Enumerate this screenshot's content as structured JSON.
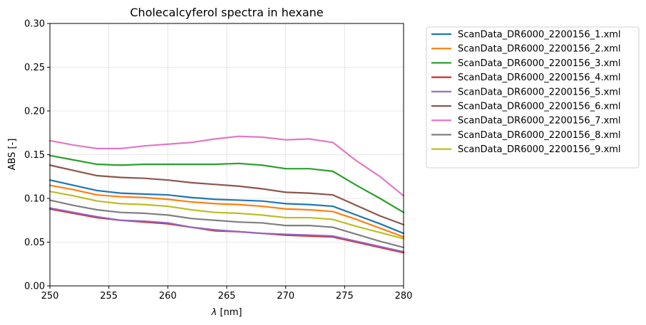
{
  "chart_data": {
    "type": "line",
    "title": "Cholecalcyferol spectra in hexane",
    "xlabel_symbol": "λ",
    "xlabel_unit": " [nm]",
    "ylabel": "ABS [-]",
    "xlim": [
      250,
      280
    ],
    "ylim": [
      0.0,
      0.3
    ],
    "xticks": [
      250,
      255,
      260,
      265,
      270,
      275,
      280
    ],
    "xtick_labels": [
      "250",
      "255",
      "260",
      "265",
      "270",
      "275",
      "280"
    ],
    "yticks": [
      0.0,
      0.05,
      0.1,
      0.15,
      0.2,
      0.25,
      0.3
    ],
    "ytick_labels": [
      "0.00",
      "0.05",
      "0.10",
      "0.15",
      "0.20",
      "0.25",
      "0.30"
    ],
    "grid": true,
    "legend_position": "outside-right-top",
    "x": [
      250,
      252,
      254,
      256,
      258,
      260,
      262,
      264,
      266,
      268,
      270,
      272,
      274,
      276,
      278,
      280
    ],
    "series": [
      {
        "name": "ScanData_DR6000_2200156_1.xml",
        "color": "#1f77b4",
        "values": [
          0.121,
          0.115,
          0.109,
          0.106,
          0.105,
          0.104,
          0.101,
          0.099,
          0.098,
          0.097,
          0.094,
          0.093,
          0.091,
          0.081,
          0.071,
          0.06
        ]
      },
      {
        "name": "ScanData_DR6000_2200156_2.xml",
        "color": "#ff7f0e",
        "values": [
          0.115,
          0.11,
          0.104,
          0.102,
          0.101,
          0.099,
          0.096,
          0.094,
          0.093,
          0.091,
          0.088,
          0.087,
          0.085,
          0.076,
          0.066,
          0.056
        ]
      },
      {
        "name": "ScanData_DR6000_2200156_3.xml",
        "color": "#2ca02c",
        "values": [
          0.149,
          0.144,
          0.139,
          0.138,
          0.139,
          0.139,
          0.139,
          0.139,
          0.14,
          0.138,
          0.134,
          0.134,
          0.131,
          0.115,
          0.1,
          0.084
        ]
      },
      {
        "name": "ScanData_DR6000_2200156_4.xml",
        "color": "#d62728",
        "values": [
          0.088,
          0.083,
          0.078,
          0.075,
          0.073,
          0.071,
          0.067,
          0.063,
          0.062,
          0.06,
          0.058,
          0.057,
          0.056,
          0.05,
          0.044,
          0.038
        ]
      },
      {
        "name": "ScanData_DR6000_2200156_5.xml",
        "color": "#9467bd",
        "values": [
          0.089,
          0.084,
          0.079,
          0.075,
          0.074,
          0.072,
          0.067,
          0.064,
          0.062,
          0.06,
          0.059,
          0.058,
          0.057,
          0.051,
          0.045,
          0.039
        ]
      },
      {
        "name": "ScanData_DR6000_2200156_6.xml",
        "color": "#8c564b",
        "values": [
          0.138,
          0.132,
          0.126,
          0.124,
          0.123,
          0.121,
          0.118,
          0.116,
          0.114,
          0.111,
          0.107,
          0.106,
          0.104,
          0.092,
          0.08,
          0.07
        ]
      },
      {
        "name": "ScanData_DR6000_2200156_7.xml",
        "color": "#e377c2",
        "values": [
          0.166,
          0.161,
          0.157,
          0.157,
          0.16,
          0.162,
          0.164,
          0.168,
          0.171,
          0.17,
          0.167,
          0.168,
          0.164,
          0.143,
          0.125,
          0.103
        ]
      },
      {
        "name": "ScanData_DR6000_2200156_8.xml",
        "color": "#7f7f7f",
        "values": [
          0.098,
          0.092,
          0.087,
          0.084,
          0.083,
          0.081,
          0.077,
          0.075,
          0.073,
          0.072,
          0.069,
          0.069,
          0.067,
          0.059,
          0.051,
          0.044
        ]
      },
      {
        "name": "ScanData_DR6000_2200156_9.xml",
        "color": "#bcbd22",
        "values": [
          0.108,
          0.103,
          0.097,
          0.094,
          0.093,
          0.091,
          0.087,
          0.084,
          0.083,
          0.081,
          0.078,
          0.078,
          0.076,
          0.068,
          0.061,
          0.054
        ]
      }
    ]
  }
}
